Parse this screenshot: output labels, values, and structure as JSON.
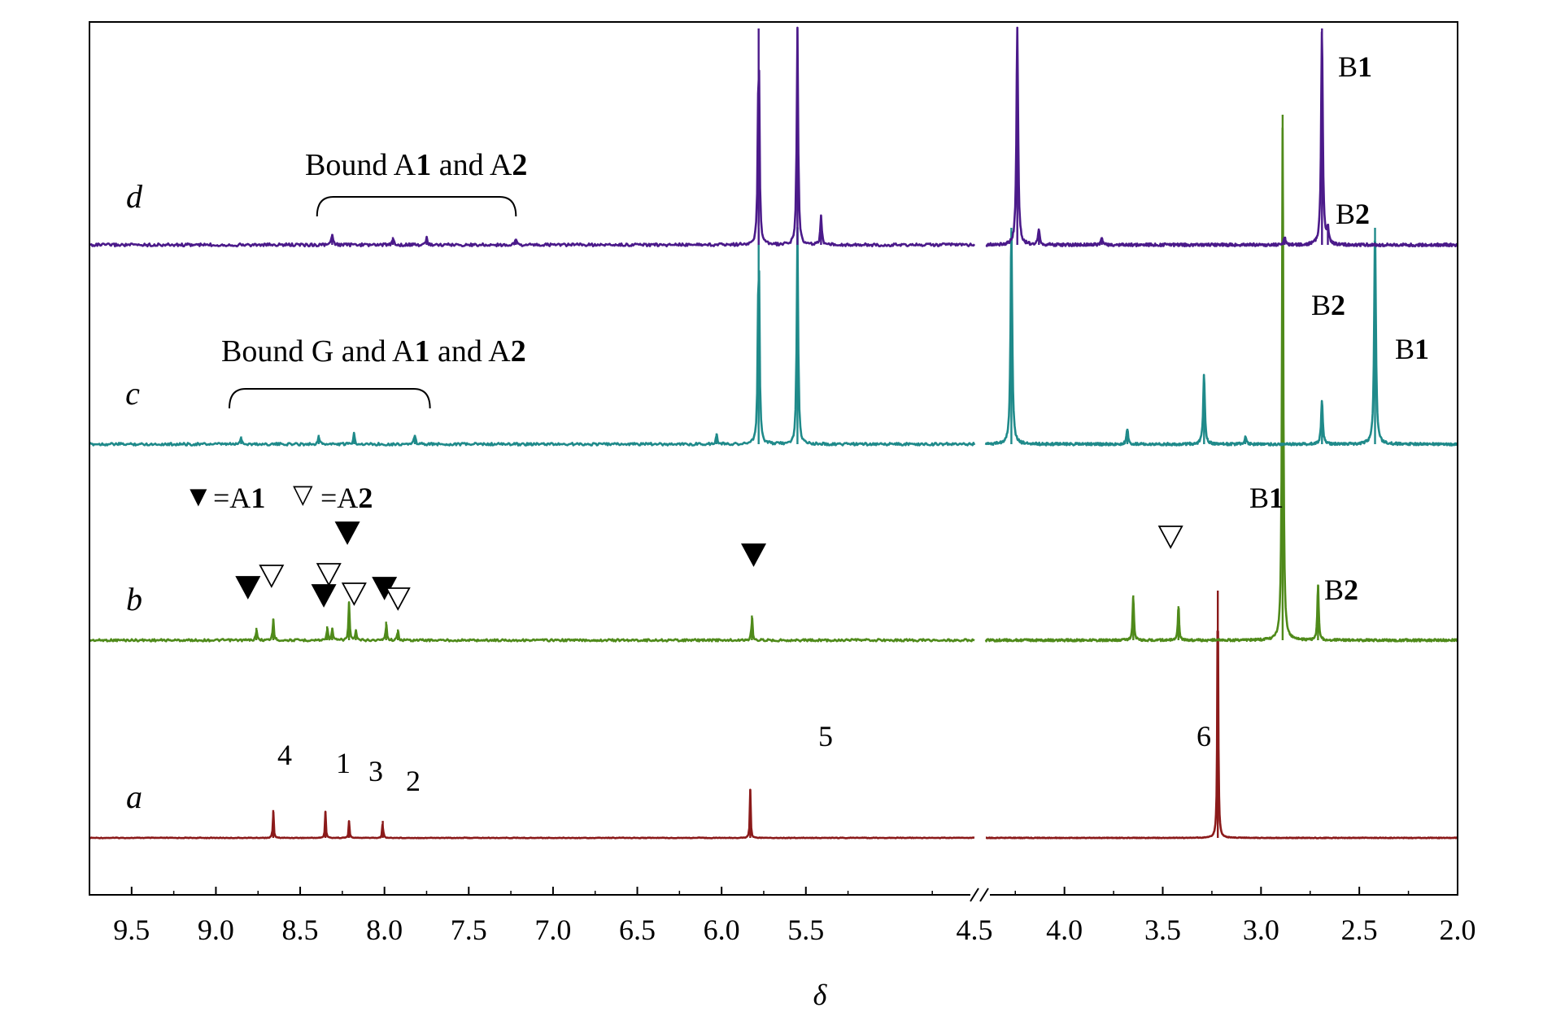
{
  "chart_data": {
    "type": "line",
    "title": "",
    "xlabel": "δ",
    "ylabel": "",
    "x_reversed": true,
    "axis_break": "between 4.5 and 4.4",
    "x_ticks": [
      "9.5",
      "9.0",
      "8.5",
      "8.0",
      "7.5",
      "7.0",
      "6.5",
      "6.0",
      "5.5",
      "4.5",
      "4.0",
      "3.5",
      "3.0",
      "2.5",
      "2.0"
    ],
    "xlim_left_segment": [
      9.75,
      4.5
    ],
    "xlim_right_segment": [
      4.4,
      2.0
    ],
    "grid": false,
    "series": [
      {
        "name": "a",
        "color": "#8b1a1a",
        "peaks": [
          {
            "x": 8.66,
            "height": 0.18
          },
          {
            "x": 8.35,
            "height": 0.17
          },
          {
            "x": 8.21,
            "height": 0.11
          },
          {
            "x": 8.01,
            "height": 0.11
          },
          {
            "x": 5.83,
            "height": 0.31
          },
          {
            "x": 3.22,
            "height": 1.6
          }
        ],
        "peak_labels": [
          {
            "text": "4",
            "x": 8.66
          },
          {
            "text": "1",
            "x": 8.35
          },
          {
            "text": "3",
            "x": 8.21
          },
          {
            "text": "2",
            "x": 8.01
          },
          {
            "text": "5",
            "x": 5.83
          },
          {
            "text": "6",
            "x": 3.22
          }
        ]
      },
      {
        "name": "b",
        "color": "#4f8a1a",
        "peaks": [
          {
            "x": 8.76,
            "height": 0.08
          },
          {
            "x": 8.66,
            "height": 0.14
          },
          {
            "x": 8.34,
            "height": 0.09
          },
          {
            "x": 8.31,
            "height": 0.08
          },
          {
            "x": 8.21,
            "height": 0.24
          },
          {
            "x": 8.17,
            "height": 0.06
          },
          {
            "x": 7.99,
            "height": 0.12
          },
          {
            "x": 7.92,
            "height": 0.07
          },
          {
            "x": 5.82,
            "height": 0.16
          },
          {
            "x": 3.65,
            "height": 0.29
          },
          {
            "x": 3.42,
            "height": 0.22
          },
          {
            "x": 2.89,
            "height": 3.4
          },
          {
            "x": 2.71,
            "height": 0.36
          }
        ],
        "marker_legend": [
          {
            "symbol": "▼",
            "text": "=A"
          },
          {
            "symbol": "▽",
            "text": "=A"
          }
        ],
        "marker_legend_suffix": [
          "1",
          "2"
        ],
        "labels": [
          "B",
          "B"
        ],
        "label_suffix": [
          "1",
          "2"
        ]
      },
      {
        "name": "c",
        "color": "#1f8a8a",
        "peaks": [
          {
            "x": 8.85,
            "height": 0.05
          },
          {
            "x": 8.39,
            "height": 0.06
          },
          {
            "x": 8.18,
            "height": 0.07
          },
          {
            "x": 7.82,
            "height": 0.06
          },
          {
            "x": 6.03,
            "height": 0.07
          },
          {
            "x": 5.78,
            "height": 1.4
          },
          {
            "x": 5.55,
            "height": 1.4
          },
          {
            "x": 4.27,
            "height": 1.4
          },
          {
            "x": 3.68,
            "height": 0.1
          },
          {
            "x": 3.29,
            "height": 0.45
          },
          {
            "x": 3.08,
            "height": 0.05
          },
          {
            "x": 2.69,
            "height": 0.28
          },
          {
            "x": 2.42,
            "height": 1.4
          }
        ],
        "annotation": {
          "prefix": "Bound G and A",
          "mid": " and  A",
          "n1": "1",
          "n2": "2"
        },
        "labels": [
          "B",
          "B"
        ],
        "label_suffix": [
          "2",
          "1"
        ]
      },
      {
        "name": "d",
        "color": "#4b1a8a",
        "peaks": [
          {
            "x": 8.31,
            "height": 0.07
          },
          {
            "x": 7.95,
            "height": 0.05
          },
          {
            "x": 7.75,
            "height": 0.05
          },
          {
            "x": 7.22,
            "height": 0.04
          },
          {
            "x": 5.78,
            "height": 1.4
          },
          {
            "x": 5.55,
            "height": 1.4
          },
          {
            "x": 5.41,
            "height": 0.19
          },
          {
            "x": 4.24,
            "height": 1.4
          },
          {
            "x": 4.13,
            "height": 0.09
          },
          {
            "x": 3.81,
            "height": 0.05
          },
          {
            "x": 2.88,
            "height": 0.05
          },
          {
            "x": 2.69,
            "height": 1.4
          },
          {
            "x": 2.66,
            "height": 0.1
          }
        ],
        "annotation": {
          "prefix": "Bound  A",
          "mid": " and  A",
          "n1": "1",
          "n2": "2"
        },
        "labels": [
          "B",
          "B"
        ],
        "label_suffix": [
          "1",
          "2"
        ]
      }
    ]
  }
}
